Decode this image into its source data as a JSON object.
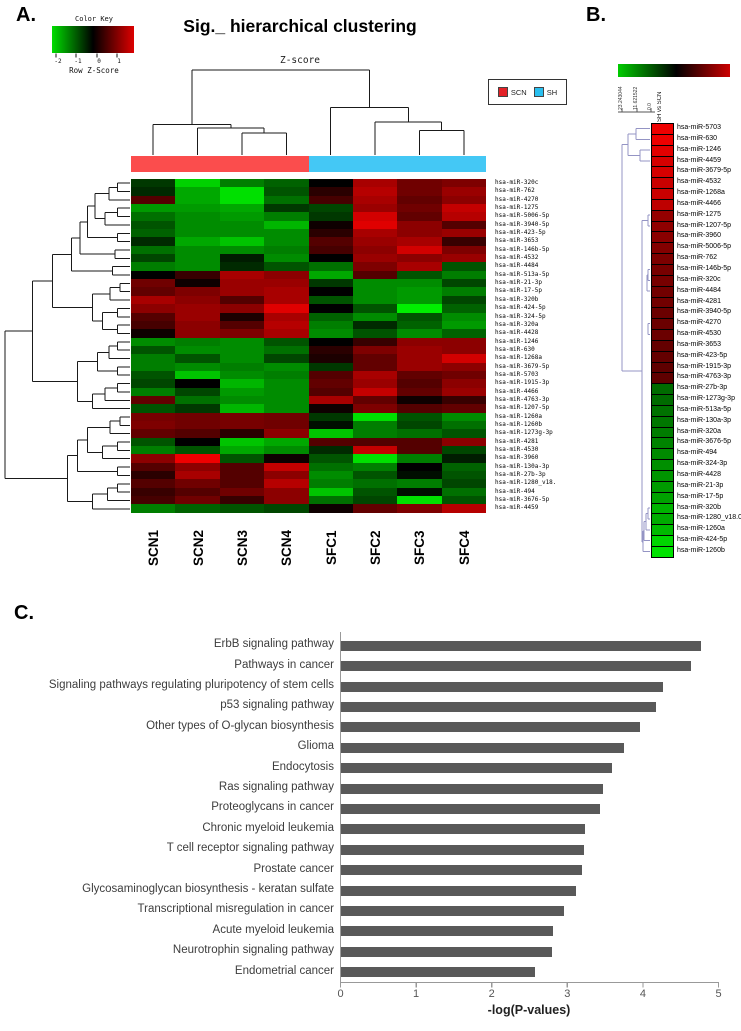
{
  "figure": {
    "panel_a": {
      "label": "A.",
      "title": "Sig._ hierarchical clustering",
      "subtitle": "Z-score",
      "color_key": {
        "title": "Color Key",
        "axis_label": "Row Z-Score",
        "ticks": [
          "-2",
          "-1",
          "0",
          "1"
        ]
      },
      "legend": [
        {
          "label": "SCN",
          "color": "#e32227"
        },
        {
          "label": "SH",
          "color": "#29bfef"
        }
      ],
      "group_bar": {
        "scn_color": "#fb4d4d",
        "sh_color": "#44c8f5"
      },
      "columns": [
        "SCN1",
        "SCN2",
        "SCN3",
        "SCN4",
        "SFC1",
        "SFC2",
        "SFC3",
        "SFC4"
      ],
      "rows": [
        "hsa-miR-320c",
        "hsa-miR-762",
        "hsa-miR-4270",
        "hsa-miR-1275",
        "hsa-miR-5006-5p",
        "hsa-miR-3940-5p",
        "hsa-miR-423-5p",
        "hsa-miR-3653",
        "hsa-miR-146b-5p",
        "hsa-miR-4532",
        "hsa-miR-4484",
        "hsa-miR-513a-5p",
        "hsa-miR-21-3p",
        "hsa-miR-17-5p",
        "hsa-miR-320b",
        "hsa-miR-424-5p",
        "hsa-miR-324-5p",
        "hsa-miR-320a",
        "hsa-miR-4428",
        "hsa-miR-1246",
        "hsa-miR-630",
        "hsa-miR-1268a",
        "hsa-miR-3679-5p",
        "hsa-miR-5703",
        "hsa-miR-1915-3p",
        "hsa-miR-4466",
        "hsa-miR-4763-3p",
        "hsa-miR-1207-5p",
        "hsa-miR-1260a",
        "hsa-miR-1260b",
        "hsa-miR-1273g-3p",
        "hsa-miR-4281",
        "hsa-miR-4530",
        "hsa-miR-3960",
        "hsa-miR-130a-3p",
        "hsa-miR-27b-3p",
        "hsa-miR-1280_v18.",
        "hsa-miR-494",
        "hsa-miR-3676-5p",
        "hsa-miR-4459"
      ],
      "z": [
        [
          -0.4,
          -1.5,
          -0.9,
          -0.7,
          0.0,
          1.2,
          0.8,
          0.9
        ],
        [
          -0.3,
          -1.2,
          -1.6,
          -0.6,
          0.3,
          1.3,
          0.8,
          1.1
        ],
        [
          0.6,
          -1.2,
          -1.6,
          -0.8,
          0.5,
          1.2,
          0.7,
          1.0
        ],
        [
          -1.1,
          -1.1,
          -1.2,
          -0.4,
          -0.5,
          1.1,
          0.8,
          1.4
        ],
        [
          -0.8,
          -1.0,
          -1.1,
          -0.9,
          -0.4,
          1.5,
          0.7,
          1.3
        ],
        [
          -0.6,
          -1.0,
          -1.0,
          -1.3,
          0.1,
          1.6,
          1.0,
          0.6
        ],
        [
          -0.7,
          -1.0,
          -1.0,
          -1.0,
          0.3,
          1.2,
          1.0,
          1.1
        ],
        [
          -0.3,
          -1.2,
          -1.4,
          -1.0,
          0.6,
          1.1,
          1.2,
          0.4
        ],
        [
          -0.8,
          -1.0,
          -1.0,
          -0.9,
          0.5,
          1.0,
          1.5,
          0.9
        ],
        [
          -0.5,
          -1.0,
          -0.2,
          -1.0,
          0.0,
          1.1,
          1.0,
          1.1
        ],
        [
          -0.9,
          -1.0,
          -0.3,
          -0.6,
          -0.8,
          0.9,
          1.2,
          -0.6
        ],
        [
          0.0,
          0.4,
          1.2,
          1.0,
          -1.2,
          0.6,
          -0.6,
          -0.9
        ],
        [
          0.8,
          0.1,
          1.1,
          1.1,
          -0.4,
          -1.0,
          -1.0,
          -0.5
        ],
        [
          0.7,
          0.9,
          1.1,
          1.2,
          0.0,
          -1.0,
          -1.1,
          -0.9
        ],
        [
          1.2,
          1.0,
          0.6,
          1.2,
          -0.6,
          -1.0,
          -1.1,
          -0.5
        ],
        [
          1.0,
          1.1,
          1.0,
          1.6,
          0.0,
          -0.6,
          -1.8,
          -0.7
        ],
        [
          0.6,
          1.1,
          0.2,
          1.2,
          -0.7,
          -1.0,
          -0.6,
          -1.0
        ],
        [
          0.5,
          1.0,
          0.6,
          1.3,
          -0.9,
          -0.3,
          -0.7,
          -1.1
        ],
        [
          0.1,
          1.0,
          0.9,
          1.2,
          -1.0,
          -0.6,
          -1.0,
          -0.7
        ],
        [
          -1.0,
          -0.9,
          -1.0,
          -0.6,
          0.0,
          0.4,
          1.0,
          1.0
        ],
        [
          -0.6,
          -1.0,
          -1.0,
          -0.8,
          0.3,
          0.9,
          1.1,
          1.0
        ],
        [
          -0.9,
          -0.6,
          -1.0,
          -0.5,
          0.2,
          0.7,
          1.1,
          1.5
        ],
        [
          -0.9,
          -1.0,
          -0.9,
          -1.0,
          -0.4,
          0.7,
          1.1,
          1.0
        ],
        [
          -0.6,
          -1.4,
          -1.0,
          -0.9,
          0.6,
          1.2,
          0.7,
          0.8
        ],
        [
          -0.5,
          0.0,
          -1.3,
          -1.0,
          0.7,
          1.1,
          0.6,
          1.0
        ],
        [
          -0.9,
          -0.5,
          -1.1,
          -1.0,
          0.6,
          1.4,
          0.7,
          1.1
        ],
        [
          0.7,
          -0.8,
          -1.0,
          -1.0,
          1.2,
          0.7,
          0.1,
          0.4
        ],
        [
          -0.6,
          -0.4,
          -1.3,
          -1.0,
          0.1,
          0.9,
          0.6,
          0.7
        ],
        [
          0.85,
          0.8,
          0.85,
          0.8,
          -0.4,
          -1.6,
          -0.6,
          -1.0
        ],
        [
          0.9,
          0.8,
          0.85,
          0.8,
          -0.1,
          -0.9,
          -0.5,
          -0.8
        ],
        [
          0.7,
          0.6,
          0.3,
          1.0,
          -1.4,
          -0.9,
          -0.8,
          -0.6
        ],
        [
          -0.6,
          0.0,
          -1.4,
          -1.2,
          0.6,
          0.6,
          0.6,
          1.0
        ],
        [
          -0.9,
          -0.6,
          -1.2,
          -1.0,
          -0.3,
          1.4,
          0.6,
          -0.5
        ],
        [
          1.0,
          1.7,
          -0.6,
          0.1,
          -0.6,
          -1.6,
          -0.9,
          -0.2
        ],
        [
          0.6,
          1.0,
          0.6,
          1.4,
          -0.8,
          -0.9,
          0.0,
          -0.7
        ],
        [
          0.3,
          1.2,
          0.6,
          1.0,
          -1.0,
          -0.6,
          -0.1,
          -0.6
        ],
        [
          0.6,
          0.8,
          0.6,
          1.3,
          -0.9,
          -0.8,
          -0.9,
          -0.5
        ],
        [
          0.4,
          0.6,
          0.8,
          1.0,
          -1.4,
          -0.6,
          -0.1,
          -0.8
        ],
        [
          0.5,
          0.8,
          0.4,
          1.0,
          -0.8,
          -0.5,
          -1.6,
          -0.6
        ],
        [
          -0.9,
          -0.7,
          -0.6,
          -0.5,
          0.1,
          0.7,
          0.9,
          1.3
        ]
      ],
      "row_dendrogram": [
        [
          [
            [
              [
                [
                  [
                    [
                      0,
                      1,
                      0.1
                    ],
                    2,
                    0.17
                  ],
                  [
                    [
                      3,
                      4,
                      0.1
                    ],
                    5,
                    0.2
                  ],
                  0.28
                ],
                [
                  6,
                  7,
                  0.1
                ],
                0.34
              ],
              [
                8,
                9,
                0.12
              ],
              0.4
            ],
            [
              10,
              11,
              0.14
            ],
            0.47
          ],
          [
            [
              [
                12,
                13,
                0.08
              ],
              14,
              0.16
            ],
            [
              [
                15,
                16,
                0.1
              ],
              [
                17,
                18,
                0.1
              ],
              0.22
            ],
            0.3
          ],
          0.62
        ],
        [
          [
            [
              [
                19,
                20,
                0.1
              ],
              21,
              0.17
            ],
            [
              22,
              23,
              0.1
            ],
            0.26
          ],
          [
            [
              [
                24,
                25,
                0.1
              ],
              26,
              0.2
            ],
            27,
            0.3
          ],
          0.42
        ],
        0.78
      ],
      "row_dendrogram_low": [
        [
          [
            [
              [
                28,
                29,
                0.08
              ],
              30,
              0.16
            ],
            [
              [
                31,
                32,
                0.1
              ],
              33,
              0.22
            ],
            0.34
          ],
          [
            34,
            35,
            0.1
          ],
          0.42
        ],
        [
          [
            [
              36,
              37,
              0.1
            ],
            38,
            0.18
          ],
          39,
          0.3
        ],
        0.5
      ],
      "col_dendrogram": [
        [
          0,
          [
            1,
            [
              2,
              3,
              0.26
            ],
            0.32
          ],
          0.36
        ],
        [
          4,
          [
            5,
            [
              6,
              7,
              0.29
            ],
            0.39
          ],
          0.56
        ],
        1.0
      ]
    },
    "panel_b": {
      "label": "B.",
      "column_header": "SH vs SCN",
      "scale_ticks": [
        "23.243044",
        "11.621522",
        "0.0"
      ],
      "rows": [
        "hsa-miR-5703",
        "hsa-miR-630",
        "hsa-miR-1246",
        "hsa-miR-4459",
        "hsa-miR-3679-5p",
        "hsa-miR-4532",
        "hsa-miR-1268a",
        "hsa-miR-4466",
        "hsa-miR-1275",
        "hsa-miR-1207-5p",
        "hsa-miR-3960",
        "hsa-miR-5006-5p",
        "hsa-miR-762",
        "hsa-miR-146b-5p",
        "hsa-miR-320c",
        "hsa-miR-4484",
        "hsa-miR-4281",
        "hsa-miR-3940-5p",
        "hsa-miR-4270",
        "hsa-miR-4530",
        "hsa-miR-3653",
        "hsa-miR-423-5p",
        "hsa-miR-1915-3p",
        "hsa-miR-4763-3p",
        "hsa-miR-27b-3p",
        "hsa-miR-1273g-3p",
        "hsa-miR-513a-5p",
        "hsa-miR-130a-3p",
        "hsa-miR-320a",
        "hsa-miR-3676-5p",
        "hsa-miR-494",
        "hsa-miR-324-3p",
        "hsa-miR-4428",
        "hsa-miR-21-3p",
        "hsa-miR-17-5p",
        "hsa-miR-320b",
        "hsa-miR-1280_v18.0",
        "hsa-miR-1260a",
        "hsa-miR-424-5p",
        "hsa-miR-1260b"
      ],
      "values": [
        1.0,
        1.0,
        0.95,
        0.9,
        0.9,
        0.85,
        0.85,
        0.8,
        0.62,
        0.6,
        0.58,
        0.55,
        0.52,
        0.5,
        0.5,
        0.48,
        0.48,
        0.45,
        0.45,
        0.45,
        0.42,
        0.42,
        0.4,
        0.4,
        -0.45,
        -0.45,
        -0.48,
        -0.5,
        -0.52,
        -0.55,
        -0.58,
        -0.6,
        -0.62,
        -0.65,
        -0.68,
        -0.75,
        -0.72,
        -0.78,
        -0.9,
        -0.95
      ]
    },
    "panel_c": {
      "label": "C.",
      "chart_data": {
        "type": "bar",
        "orientation": "horizontal",
        "categories": [
          "ErbB signaling pathway",
          "Pathways in cancer",
          "Signaling pathways regulating pluripotency of stem cells",
          "p53 signaling pathway",
          "Other types of O-glycan biosynthesis",
          "Glioma",
          "Endocytosis",
          "Ras signaling pathway",
          "Proteoglycans in cancer",
          "Chronic myeloid leukemia",
          "T cell receptor signaling pathway",
          "Prostate cancer",
          "Glycosaminoglycan biosynthesis - keratan sulfate",
          "Transcriptional misregulation in cancer",
          "Acute myeloid leukemia",
          "Neurotrophin signaling pathway",
          "Endometrial cancer"
        ],
        "values": [
          4.76,
          4.63,
          4.26,
          4.17,
          3.95,
          3.74,
          3.59,
          3.46,
          3.43,
          3.23,
          3.22,
          3.19,
          3.11,
          2.95,
          2.8,
          2.79,
          2.57
        ],
        "xlabel": "-log(P-values)",
        "xlim": [
          0,
          5
        ],
        "xticks": [
          "0",
          "1",
          "2",
          "3",
          "4",
          "5"
        ],
        "bar_color": "#595959",
        "grid": false,
        "legend": false
      }
    }
  }
}
